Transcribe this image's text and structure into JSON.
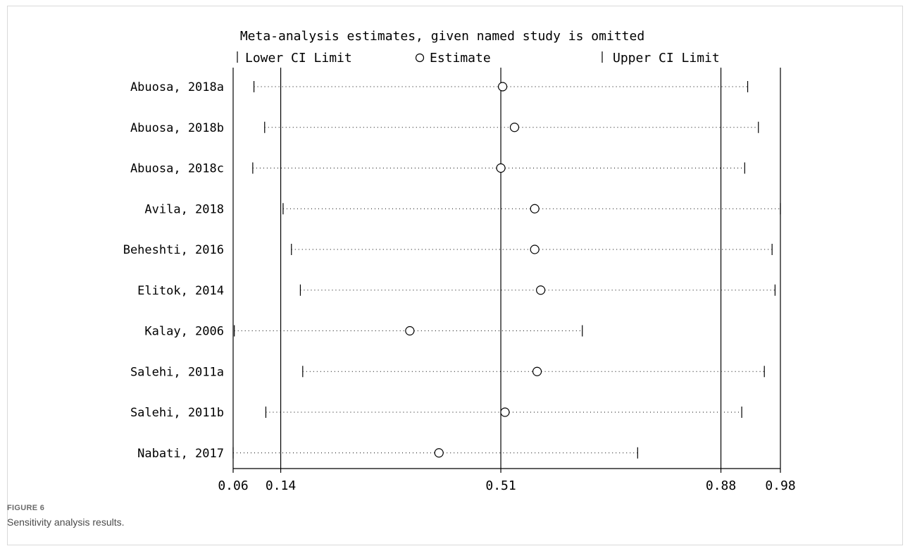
{
  "chart_data": {
    "type": "forest",
    "title": "Meta-analysis estimates, given named study is omitted",
    "legend": {
      "lower": "Lower CI Limit",
      "estimate": "Estimate",
      "upper": "Upper CI Limit",
      "placement": "top"
    },
    "x_ticks": [
      0.06,
      0.14,
      0.51,
      0.88,
      0.98
    ],
    "x_tick_labels": [
      "0.06",
      "0.14",
      "0.51",
      "0.88",
      "0.98"
    ],
    "reference_lines": [
      0.14,
      0.51,
      0.88
    ],
    "xlim": [
      0.06,
      0.98
    ],
    "studies": [
      {
        "label": "Abuosa, 2018a",
        "lower": 0.095,
        "estimate": 0.513,
        "upper": 0.925
      },
      {
        "label": "Abuosa, 2018b",
        "lower": 0.113,
        "estimate": 0.533,
        "upper": 0.943
      },
      {
        "label": "Abuosa, 2018c",
        "lower": 0.093,
        "estimate": 0.51,
        "upper": 0.92
      },
      {
        "label": "Avila, 2018",
        "lower": 0.144,
        "estimate": 0.567,
        "upper": 0.98
      },
      {
        "label": "Beheshti, 2016",
        "lower": 0.158,
        "estimate": 0.567,
        "upper": 0.966
      },
      {
        "label": "Elitok, 2014",
        "lower": 0.173,
        "estimate": 0.577,
        "upper": 0.971
      },
      {
        "label": "Kalay, 2006",
        "lower": 0.062,
        "estimate": 0.357,
        "upper": 0.647
      },
      {
        "label": "Salehi, 2011a",
        "lower": 0.177,
        "estimate": 0.571,
        "upper": 0.953
      },
      {
        "label": "Salehi, 2011b",
        "lower": 0.115,
        "estimate": 0.517,
        "upper": 0.915
      },
      {
        "label": "Nabati, 2017",
        "lower": 0.06,
        "estimate": 0.406,
        "upper": 0.74
      }
    ]
  },
  "caption": {
    "label": "FIGURE 6",
    "text": "Sensitivity analysis results."
  }
}
